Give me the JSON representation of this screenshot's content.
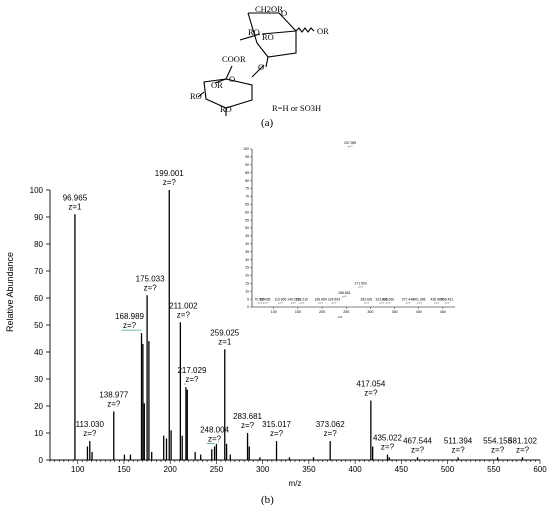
{
  "structure": {
    "groups": {
      "ch2or": "CH2OR",
      "ro1": "RO",
      "ro2": "RO",
      "or_right": "OR",
      "o_ring1": "O",
      "o_link": "O",
      "coor": "COOR",
      "o_ring2": "O",
      "or_mid": "OR",
      "ro_left": "RO",
      "ro_bottom": "RO"
    },
    "legend": "R=H or SO3H",
    "panel_label": "(a)"
  },
  "chart_data": [
    {
      "type": "bar",
      "panel_label": "(b)",
      "xlabel": "m/z",
      "ylabel": "Relative Abundance",
      "xlim": [
        70,
        600
      ],
      "ylim": [
        0,
        100
      ],
      "xticks": [
        100,
        150,
        200,
        250,
        300,
        350,
        400,
        450,
        500,
        550,
        600
      ],
      "yticks": [
        0,
        10,
        20,
        30,
        40,
        50,
        60,
        70,
        80,
        90,
        100
      ],
      "grid": false,
      "labeled_peaks": [
        {
          "mz": "96.965",
          "charge": "z=1",
          "x": 96.965,
          "y": 91
        },
        {
          "mz": "113.030",
          "charge": "z=?",
          "x": 113.03,
          "y": 7
        },
        {
          "mz": "138.977",
          "charge": "z=?",
          "x": 138.977,
          "y": 18
        },
        {
          "mz": "168.989",
          "charge": "z=?",
          "x": 168.989,
          "y": 47
        },
        {
          "mz": "175.033",
          "charge": "z=?",
          "x": 175.033,
          "y": 61
        },
        {
          "mz": "199.001",
          "charge": "z=?",
          "x": 199.001,
          "y": 100
        },
        {
          "mz": "211.002",
          "charge": "z=?",
          "x": 211.002,
          "y": 51
        },
        {
          "mz": "217.029",
          "charge": "z=?",
          "x": 217.029,
          "y": 27
        },
        {
          "mz": "248.004",
          "charge": "z=?",
          "x": 248.004,
          "y": 5
        },
        {
          "mz": "259.025",
          "charge": "z=1",
          "x": 259.025,
          "y": 41
        },
        {
          "mz": "283.681",
          "charge": "z=?",
          "x": 283.681,
          "y": 10
        },
        {
          "mz": "315.017",
          "charge": "z=?",
          "x": 315.017,
          "y": 7
        },
        {
          "mz": "373.062",
          "charge": "z=?",
          "x": 373.062,
          "y": 7
        },
        {
          "mz": "417.054",
          "charge": "z=?",
          "x": 417.054,
          "y": 22
        },
        {
          "mz": "435.022",
          "charge": "z=?",
          "x": 435.022,
          "y": 2
        },
        {
          "mz": "467.544",
          "charge": "z=?",
          "x": 467.544,
          "y": 1
        },
        {
          "mz": "511.394",
          "charge": "z=?",
          "x": 511.394,
          "y": 1
        },
        {
          "mz": "554.158",
          "charge": "z=?",
          "x": 554.158,
          "y": 1
        },
        {
          "mz": "581.102",
          "charge": "z=?",
          "x": 581.102,
          "y": 1
        }
      ],
      "unlabeled_peaks": [
        {
          "x": 110.5,
          "y": 5
        },
        {
          "x": 115.5,
          "y": 3
        },
        {
          "x": 150.5,
          "y": 2
        },
        {
          "x": 157,
          "y": 2
        },
        {
          "x": 170.5,
          "y": 43
        },
        {
          "x": 172,
          "y": 21
        },
        {
          "x": 177,
          "y": 44
        },
        {
          "x": 180,
          "y": 3
        },
        {
          "x": 193,
          "y": 9
        },
        {
          "x": 196,
          "y": 8
        },
        {
          "x": 201,
          "y": 11
        },
        {
          "x": 213,
          "y": 9
        },
        {
          "x": 218.5,
          "y": 26
        },
        {
          "x": 227,
          "y": 3
        },
        {
          "x": 233,
          "y": 2
        },
        {
          "x": 245,
          "y": 4
        },
        {
          "x": 250,
          "y": 6
        },
        {
          "x": 261,
          "y": 6
        },
        {
          "x": 265,
          "y": 2
        },
        {
          "x": 285.5,
          "y": 5
        },
        {
          "x": 297,
          "y": 1
        },
        {
          "x": 329,
          "y": 1
        },
        {
          "x": 355,
          "y": 1
        },
        {
          "x": 419,
          "y": 5
        },
        {
          "x": 437,
          "y": 1
        }
      ]
    },
    {
      "type": "bar",
      "inset": true,
      "xlabel": "m/z",
      "ylabel": "",
      "xlim": [
        55,
        475
      ],
      "ylim": [
        0,
        100
      ],
      "xticks": [
        100,
        150,
        200,
        250,
        300,
        350,
        400,
        450
      ],
      "yticks": [
        0,
        5,
        10,
        15,
        20,
        25,
        30,
        35,
        40,
        45,
        50,
        55,
        60,
        65,
        70,
        75,
        80,
        85,
        90,
        95,
        100
      ],
      "labeled_peaks": [
        {
          "mz": "70.920",
          "charge": "z=?",
          "x": 70.92,
          "y": 1
        },
        {
          "mz": "82.435",
          "charge": "z=?",
          "x": 82.435,
          "y": 1
        },
        {
          "mz": "113.665",
          "charge": "z=?",
          "x": 113.665,
          "y": 1
        },
        {
          "mz": "140.233",
          "charge": "z=?",
          "x": 140.233,
          "y": 1
        },
        {
          "mz": "158.210",
          "charge": "z=?",
          "x": 158.21,
          "y": 1
        },
        {
          "mz": "196.964",
          "charge": "z=?",
          "x": 196.964,
          "y": 1
        },
        {
          "mz": "224.593",
          "charge": "z=?",
          "x": 224.593,
          "y": 1
        },
        {
          "mz": "256.661",
          "charge": "z=?",
          "x": 256.661,
          "y": 5
        },
        {
          "mz": "257.969",
          "charge": "z=?",
          "x": 257.969,
          "y": 100
        },
        {
          "mz": "271.503",
          "charge": "z=?",
          "x": 271.503,
          "y": 6
        },
        {
          "mz": "283.691",
          "charge": "z=?",
          "x": 283.691,
          "y": 1
        },
        {
          "mz": "323.026",
          "charge": "z=?",
          "x": 323.026,
          "y": 1
        },
        {
          "mz": "336.266",
          "charge": "z=?",
          "x": 336.266,
          "y": 1
        },
        {
          "mz": "377.448",
          "charge": "z=?",
          "x": 377.448,
          "y": 1
        },
        {
          "mz": "401.356",
          "charge": "z=?",
          "x": 401.356,
          "y": 1
        },
        {
          "mz": "436.985",
          "charge": "z=?",
          "x": 436.985,
          "y": 1
        },
        {
          "mz": "458.431",
          "charge": "z=?",
          "x": 458.431,
          "y": 1
        }
      ]
    }
  ]
}
